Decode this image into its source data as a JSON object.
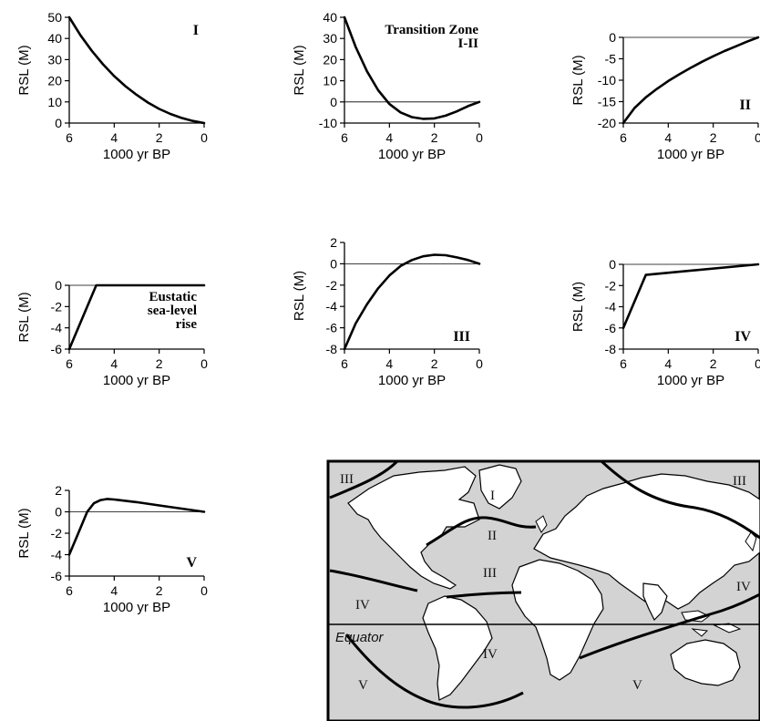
{
  "chart_data": [
    {
      "type": "line",
      "panel_label": "I",
      "xlabel": "1000 yr BP",
      "ylabel": "RSL (M)",
      "xlim": [
        6,
        0
      ],
      "ylim": [
        0,
        50
      ],
      "x_ticks": [
        "6",
        "4",
        "2",
        "0"
      ],
      "y_ticks": [
        "50",
        "40",
        "30",
        "20",
        "10",
        "0"
      ],
      "zero_line": false,
      "series": [
        {
          "x": [
            6,
            5.5,
            5,
            4.5,
            4,
            3.5,
            3,
            2.5,
            2,
            1.5,
            1,
            0.5,
            0
          ],
          "values": [
            50,
            41.5,
            34.2,
            27.8,
            22.2,
            17.4,
            13.3,
            9.7,
            6.7,
            4.3,
            2.4,
            1.0,
            0
          ]
        }
      ]
    },
    {
      "type": "line",
      "panel_label": "Transition Zone\nI-II",
      "xlabel": "1000 yr BP",
      "ylabel": "RSL (M)",
      "xlim": [
        6,
        0
      ],
      "ylim": [
        -10,
        40
      ],
      "x_ticks": [
        "6",
        "4",
        "2",
        "0"
      ],
      "y_ticks": [
        "40",
        "30",
        "20",
        "10",
        "0",
        "-10"
      ],
      "zero_line": true,
      "series": [
        {
          "x": [
            6,
            5.5,
            5,
            4.5,
            4,
            3.5,
            3,
            2.5,
            2,
            1.5,
            1,
            0.5,
            0
          ],
          "values": [
            40,
            26,
            14.5,
            5.5,
            -1,
            -5,
            -7.2,
            -8,
            -7.8,
            -6.5,
            -4.5,
            -2,
            0
          ]
        }
      ]
    },
    {
      "type": "line",
      "panel_label": "II",
      "xlabel": "1000 yr BP",
      "ylabel": "RSL (M)",
      "xlim": [
        6,
        0
      ],
      "ylim": [
        -20,
        0
      ],
      "x_ticks": [
        "6",
        "4",
        "2",
        "0"
      ],
      "y_ticks": [
        "0",
        "-5",
        "-10",
        "-15",
        "-20"
      ],
      "zero_line": true,
      "series": [
        {
          "x": [
            6,
            5.5,
            5,
            4.5,
            4,
            3.5,
            3,
            2.5,
            2,
            1.5,
            1,
            0.5,
            0
          ],
          "values": [
            -20,
            -16.5,
            -14,
            -12,
            -10.2,
            -8.6,
            -7.1,
            -5.7,
            -4.4,
            -3.2,
            -2.1,
            -1.0,
            0
          ]
        }
      ]
    },
    {
      "type": "line",
      "panel_label": "Eustatic\nsea-level\nrise",
      "xlabel": "1000 yr BP",
      "ylabel": "RSL (M)",
      "xlim": [
        6,
        0
      ],
      "ylim": [
        -6,
        0
      ],
      "x_ticks": [
        "6",
        "4",
        "2",
        "0"
      ],
      "y_ticks": [
        "0",
        "-2",
        "-4",
        "-6"
      ],
      "zero_line": true,
      "series": [
        {
          "x": [
            6,
            4.8,
            4.6,
            0
          ],
          "values": [
            -6,
            0,
            0,
            0
          ]
        }
      ]
    },
    {
      "type": "line",
      "panel_label": "III",
      "xlabel": "1000 yr BP",
      "ylabel": "RSL (M)",
      "xlim": [
        6,
        0
      ],
      "ylim": [
        -8,
        2
      ],
      "x_ticks": [
        "6",
        "4",
        "2",
        "0"
      ],
      "y_ticks": [
        "2",
        "0",
        "-2",
        "-4",
        "-6",
        "-8"
      ],
      "zero_line": true,
      "series": [
        {
          "x": [
            6,
            5.5,
            5,
            4.5,
            4,
            3.5,
            3,
            2.5,
            2,
            1.5,
            1,
            0.5,
            0
          ],
          "values": [
            -8,
            -5.6,
            -3.8,
            -2.3,
            -1.1,
            -0.2,
            0.35,
            0.7,
            0.85,
            0.8,
            0.6,
            0.35,
            0
          ]
        }
      ]
    },
    {
      "type": "line",
      "panel_label": "IV",
      "xlabel": "1000 yr BP",
      "ylabel": "RSL (M)",
      "xlim": [
        6,
        0
      ],
      "ylim": [
        -8,
        0
      ],
      "x_ticks": [
        "6",
        "4",
        "2",
        "0"
      ],
      "y_ticks": [
        "0",
        "-2",
        "-4",
        "-6",
        "-8"
      ],
      "zero_line": true,
      "series": [
        {
          "x": [
            6,
            5,
            0
          ],
          "values": [
            -6,
            -1,
            0
          ]
        }
      ]
    },
    {
      "type": "line",
      "panel_label": "V",
      "xlabel": "1000 yr BP",
      "ylabel": "RSL (M)",
      "xlim": [
        6,
        0
      ],
      "ylim": [
        -6,
        2
      ],
      "x_ticks": [
        "6",
        "4",
        "2",
        "0"
      ],
      "y_ticks": [
        "2",
        "0",
        "-2",
        "-4",
        "-6"
      ],
      "zero_line": true,
      "series": [
        {
          "x": [
            6,
            5.6,
            5.2,
            4.9,
            4.6,
            4.3,
            4,
            3,
            2,
            1,
            0
          ],
          "values": [
            -4,
            -2,
            0,
            0.8,
            1.1,
            1.2,
            1.15,
            0.9,
            0.6,
            0.3,
            0
          ]
        }
      ]
    }
  ],
  "map": {
    "equator_label": "Equator",
    "zone_labels": [
      "III",
      "I",
      "II",
      "III",
      "IV",
      "IV",
      "III",
      "IV",
      "V",
      "V"
    ]
  },
  "colors": {
    "ocean": "#d3d3d3",
    "land": "#ffffff",
    "line": "#000000"
  }
}
